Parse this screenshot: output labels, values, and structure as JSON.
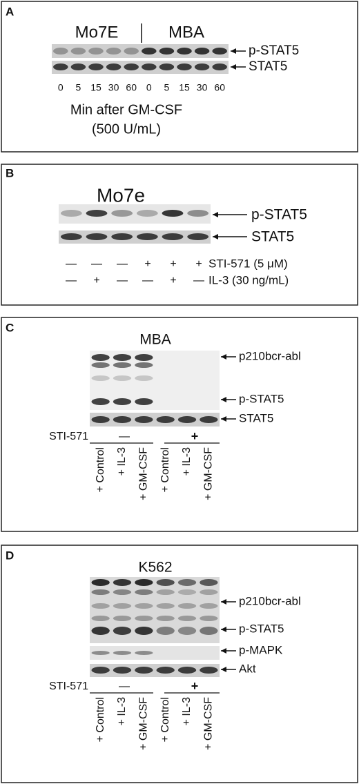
{
  "panels": [
    {
      "letter": "A",
      "groups": [
        "Mo7E",
        "MBA"
      ],
      "bands": [
        "p-STAT5",
        "STAT5"
      ],
      "lanes": [
        "0",
        "5",
        "15",
        "30",
        "60",
        "0",
        "5",
        "15",
        "30",
        "60"
      ],
      "xlabel": "Min after GM-CSF",
      "xlabel2": "(500 U/mL)"
    },
    {
      "letter": "B",
      "title": "Mo7e",
      "bands": [
        "p-STAT5",
        "STAT5"
      ],
      "rows": [
        {
          "signs": [
            "—",
            "—",
            "—",
            "+",
            "+",
            "+"
          ],
          "label": "STI-571 (5 μM)"
        },
        {
          "signs": [
            "—",
            "+",
            "—",
            "—",
            "+",
            "—"
          ],
          "label": "IL-3 (30 ng/mL)"
        }
      ]
    },
    {
      "letter": "C",
      "title": "MBA",
      "bands": [
        "p210bcr-abl",
        "p-STAT5",
        "STAT5"
      ],
      "treatment": "STI-571",
      "groups": [
        "—",
        "+"
      ],
      "lanes": [
        "+ Control",
        "+ IL-3",
        "+ GM-CSF",
        "+ Control",
        "+ IL-3",
        "+ GM-CSF"
      ]
    },
    {
      "letter": "D",
      "title": "K562",
      "bands": [
        "p210bcr-abl",
        "p-STAT5",
        "p-MAPK",
        "Akt"
      ],
      "treatment": "STI-571",
      "groups": [
        "—",
        "+"
      ],
      "lanes": [
        "+ Control",
        "+ IL-3",
        "+ GM-CSF",
        "+ Control",
        "+ IL-3",
        "+ GM-CSF"
      ]
    }
  ]
}
